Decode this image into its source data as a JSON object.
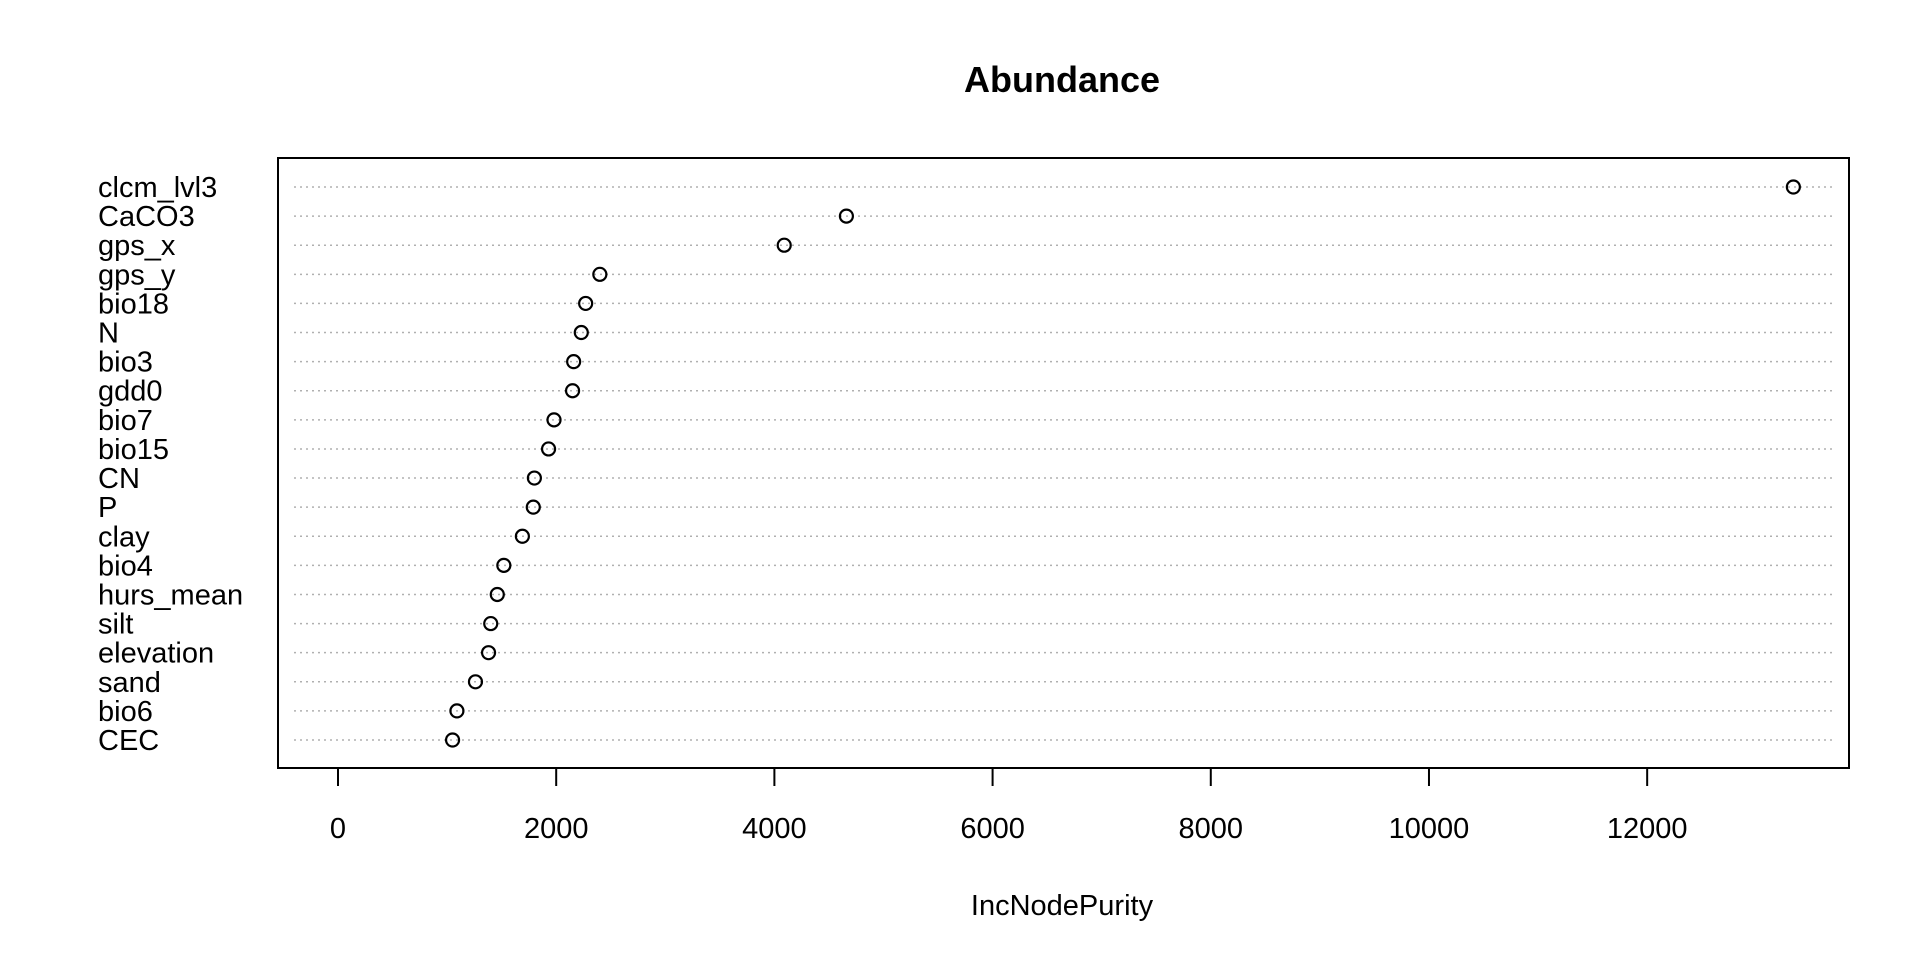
{
  "chart_data": {
    "type": "scatter",
    "subtype": "dotchart",
    "title": "Abundance",
    "xlabel": "IncNodePurity",
    "ylabel": "",
    "xlim": [
      -550,
      13850
    ],
    "xticks": [
      0,
      2000,
      4000,
      6000,
      8000,
      10000,
      12000
    ],
    "xtick_labels": [
      "0",
      "2000",
      "4000",
      "6000",
      "8000",
      "10000",
      "12000"
    ],
    "grid": "dotted horizontal lines per category",
    "legend": "none",
    "point_style": "open circle",
    "colors": {
      "points": "#000000",
      "grid": "#b0b0b0",
      "frame": "#000000"
    },
    "categories": [
      "clcm_lvl3",
      "CaCO3",
      "gps_x",
      "gps_y",
      "bio18",
      "N",
      "bio3",
      "gdd0",
      "bio7",
      "bio15",
      "CN",
      "P",
      "clay",
      "bio4",
      "hurs_mean",
      "silt",
      "elevation",
      "sand",
      "bio6",
      "CEC"
    ],
    "values": [
      13340,
      4660,
      4090,
      2400,
      2270,
      2230,
      2160,
      2150,
      1980,
      1930,
      1800,
      1790,
      1690,
      1520,
      1460,
      1400,
      1380,
      1260,
      1090,
      1050
    ]
  }
}
